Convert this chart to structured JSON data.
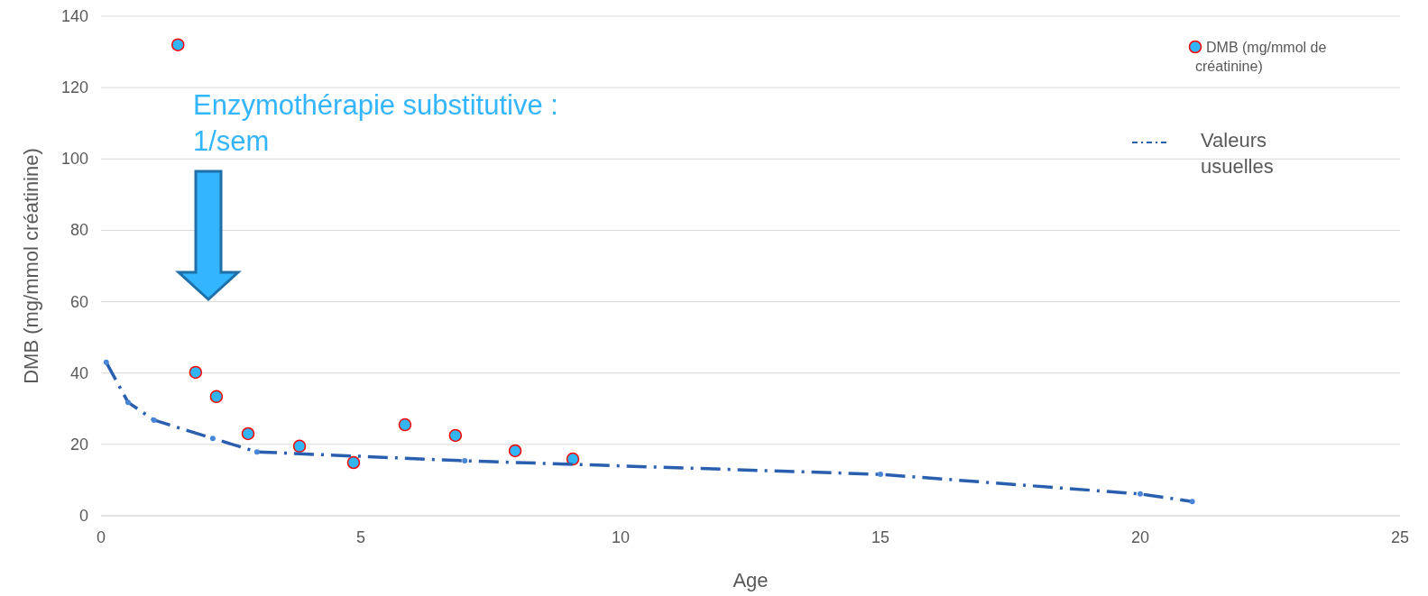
{
  "chart_data": {
    "type": "scatter",
    "xlabel": "Age",
    "ylabel": "DMB (mg/mmol créatinine)",
    "xlim": [
      0,
      25
    ],
    "xticks": [
      0,
      5,
      10,
      15,
      20,
      25
    ],
    "ylim": [
      0,
      140
    ],
    "yticks": [
      0,
      20,
      40,
      60,
      80,
      100,
      120,
      140
    ],
    "grid": "y",
    "legend": "top right",
    "marker": "circle",
    "annotations": [
      "Enzymothérapie substitutive :\n1/sem"
    ],
    "series": [
      {
        "name": "DMB (mg/mmol de créatinine)",
        "color": "#33b5f5",
        "x": [
          1.48,
          1.82,
          2.22,
          2.83,
          3.82,
          4.86,
          5.85,
          6.82,
          7.97,
          9.08
        ],
        "values": [
          132,
          40.2,
          33.4,
          23,
          19.5,
          14.9,
          25.5,
          22.5,
          18.2,
          15.9
        ]
      },
      {
        "name": "Valeurs usuelles",
        "type": "line",
        "line_style": "dashed",
        "color": "#2a5fb0",
        "x": [
          0.1,
          0.52,
          1.02,
          2.15,
          3.0,
          7.0,
          15,
          20,
          21
        ],
        "values": [
          43,
          31.8,
          26.8,
          21.7,
          17.9,
          15.4,
          11.6,
          6.1,
          4.0
        ]
      }
    ]
  }
}
